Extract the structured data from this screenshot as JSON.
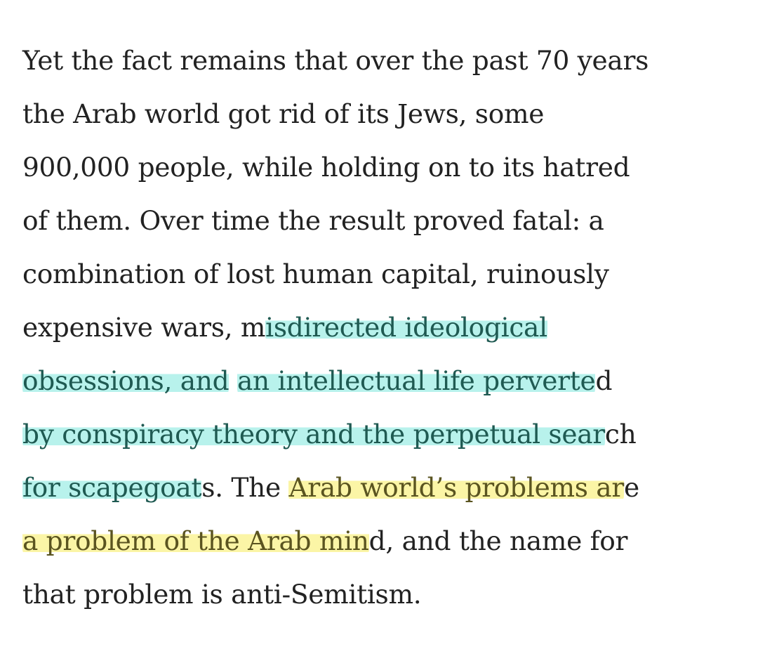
{
  "colors": {
    "text": "#222222",
    "highlight_cyan": "#b8f2ec",
    "highlight_yellow": "#fbf5a6"
  },
  "paragraph": {
    "lines": [
      [
        {
          "t": "Yet the fact remains that over the past 70 years",
          "h": "none"
        }
      ],
      [
        {
          "t": "the Arab world got rid of its Jews, some",
          "h": "none"
        }
      ],
      [
        {
          "t": "900,000 people, while holding on to its hatred",
          "h": "none"
        }
      ],
      [
        {
          "t": "of them. Over time the result proved fatal: a",
          "h": "none"
        }
      ],
      [
        {
          "t": "combination of lost human capital, ruinously",
          "h": "none"
        }
      ],
      [
        {
          "t": "expensive wars, m",
          "h": "none"
        },
        {
          "t": "isdirected ideological",
          "h": "cyan"
        }
      ],
      [
        {
          "t": "obsessions, and",
          "h": "cyan"
        },
        {
          "t": " ",
          "h": "none"
        },
        {
          "t": "an intellectual life perverte",
          "h": "cyan"
        },
        {
          "t": "d",
          "h": "none"
        }
      ],
      [
        {
          "t": "by conspiracy theory and the perpetual sear",
          "h": "cyan"
        },
        {
          "t": "ch",
          "h": "none"
        }
      ],
      [
        {
          "t": "for scapegoat",
          "h": "cyan"
        },
        {
          "t": "s. The ",
          "h": "none"
        },
        {
          "t": "Arab world’s problems ar",
          "h": "yellow"
        },
        {
          "t": "e",
          "h": "none"
        }
      ],
      [
        {
          "t": "a problem of the Arab min",
          "h": "yellow"
        },
        {
          "t": "d, and the name for",
          "h": "none"
        }
      ],
      [
        {
          "t": "that problem is anti-Semitism.",
          "h": "none"
        }
      ]
    ]
  }
}
